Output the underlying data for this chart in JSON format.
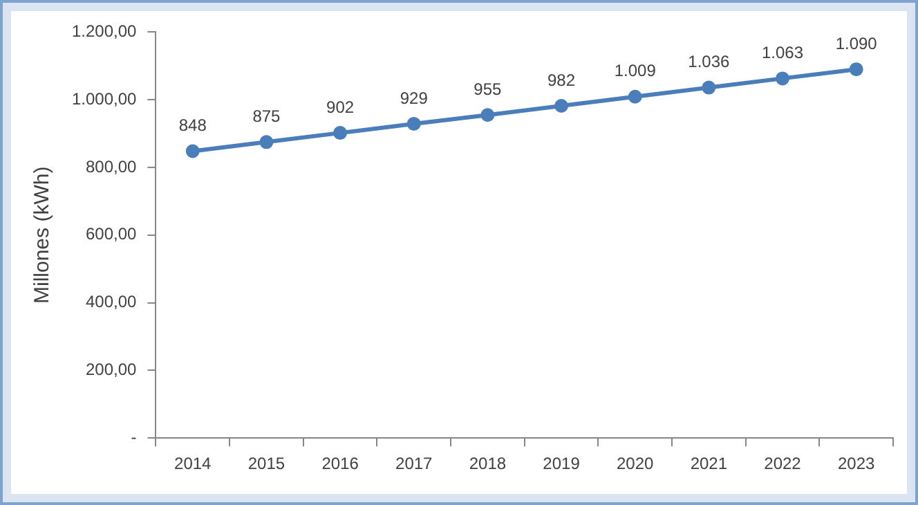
{
  "chart_data": {
    "type": "line",
    "ylabel": "Millones (kWh)",
    "categories": [
      "2014",
      "2015",
      "2016",
      "2017",
      "2018",
      "2019",
      "2020",
      "2021",
      "2022",
      "2023"
    ],
    "series": [
      {
        "color": "#4a7ebb",
        "values": [
          848,
          875,
          902,
          929,
          955,
          982,
          1009,
          1036,
          1063,
          1090
        ],
        "value_labels": [
          "848",
          "875",
          "902",
          "929",
          "955",
          "982",
          "1.009",
          "1.036",
          "1.063",
          "1.090"
        ]
      }
    ],
    "ylim": [
      0,
      1200
    ],
    "yticks": [
      {
        "value": 0,
        "label": "-"
      },
      {
        "value": 200,
        "label": "200,00"
      },
      {
        "value": 400,
        "label": "400,00"
      },
      {
        "value": 600,
        "label": "600,00"
      },
      {
        "value": 800,
        "label": "800,00"
      },
      {
        "value": 1000,
        "label": "1.000,00"
      },
      {
        "value": 1200,
        "label": "1.200,00"
      }
    ],
    "grid": false,
    "legend": false,
    "marker": "circle",
    "line_style": "solid"
  }
}
